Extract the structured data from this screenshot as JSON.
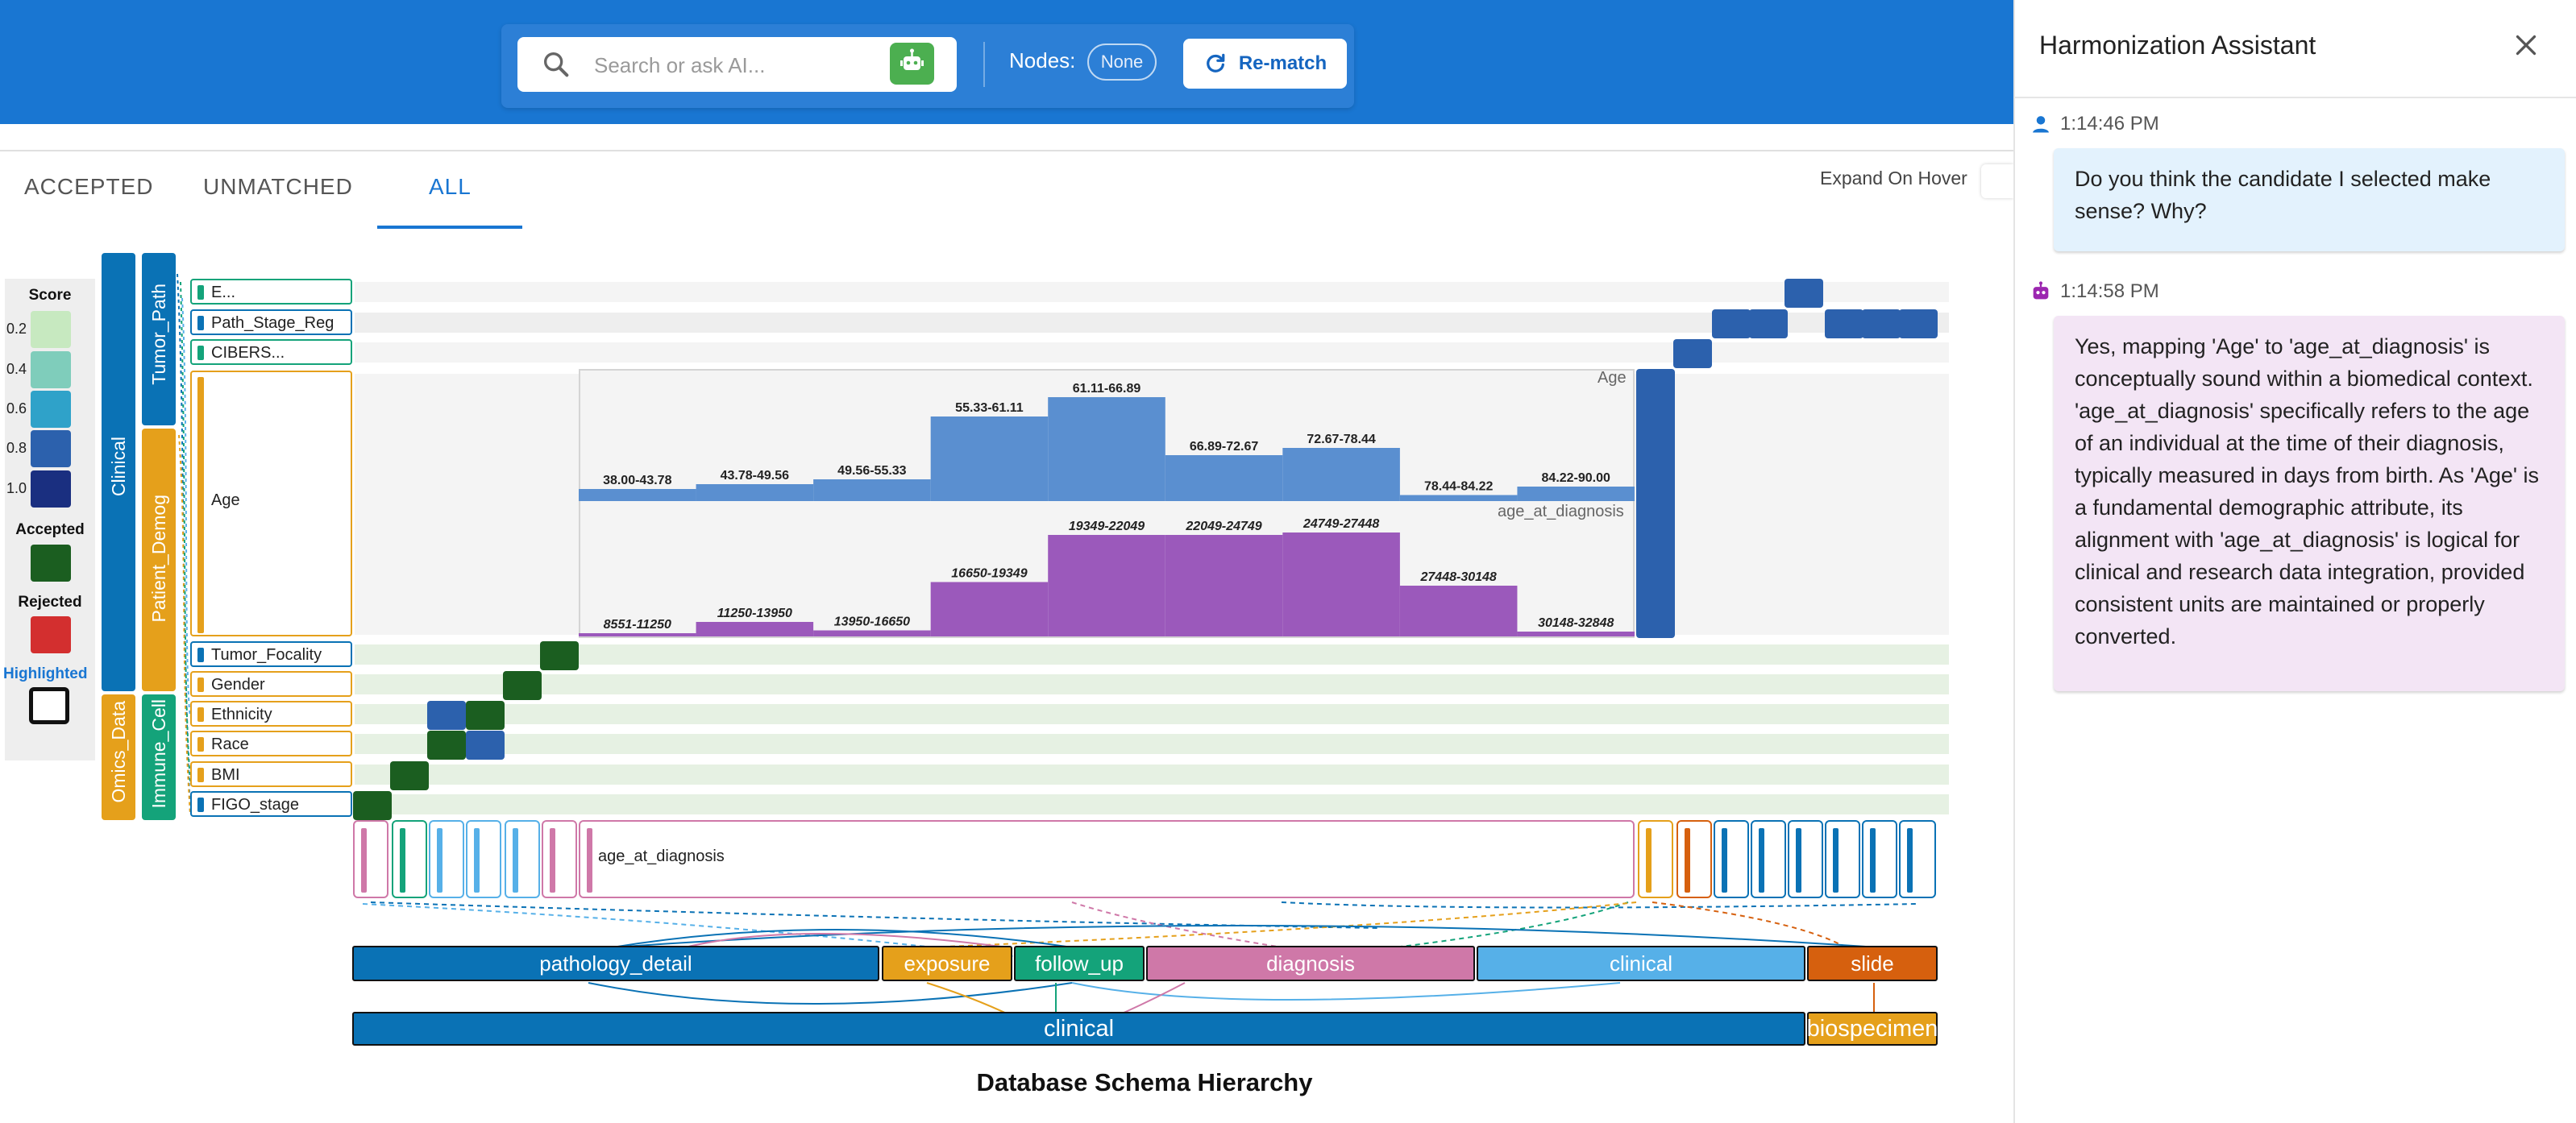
{
  "toolbar": {
    "search_placeholder": "Search or ask AI...",
    "nodes_label": "Nodes:",
    "nodes_value": "None",
    "rematch_label": "Re-match"
  },
  "tabs": [
    {
      "label": "ACCEPTED",
      "selected": false
    },
    {
      "label": "UNMATCHED",
      "selected": false
    },
    {
      "label": "ALL",
      "selected": true
    }
  ],
  "expand_on_hover_label": "Expand On Hover",
  "legend": {
    "score_title": "Score",
    "score_levels": [
      "0.2",
      "0.4",
      "0.6",
      "0.8",
      "1.0"
    ],
    "score_colors": [
      "#c7e9c0",
      "#7fcdbb",
      "#2fa2c9",
      "#2c61ad",
      "#1a2f80"
    ],
    "accepted_label": "Accepted",
    "accepted_color": "#1b5e20",
    "rejected_label": "Rejected",
    "rejected_color": "#d32f2f",
    "highlighted_label": "Highlighted"
  },
  "source_groups": {
    "level1": [
      {
        "label": "Clinical",
        "color": "#0a72b5"
      },
      {
        "label": "Omics_Data",
        "color": "#e5a01b"
      }
    ],
    "level2": [
      {
        "label": "Tumor_Path",
        "color": "#0a72b5"
      },
      {
        "label": "Patient_Demog",
        "color": "#e5a01b"
      },
      {
        "label": "Immune_Cell",
        "color": "#14a37a"
      }
    ]
  },
  "source_columns": [
    {
      "label": "E...",
      "color": "#14a37a"
    },
    {
      "label": "Path_Stage_Reg",
      "color": "#0a72b5"
    },
    {
      "label": "CIBERS...",
      "color": "#14a37a"
    },
    {
      "label": "Age",
      "color": "#e5a01b"
    },
    {
      "label": "Tumor_Focality",
      "color": "#0a72b5"
    },
    {
      "label": "Gender",
      "color": "#e5a01b"
    },
    {
      "label": "Ethnicity",
      "color": "#e5a01b"
    },
    {
      "label": "Race",
      "color": "#e5a01b"
    },
    {
      "label": "BMI",
      "color": "#e5a01b"
    },
    {
      "label": "FIGO_stage",
      "color": "#0a72b5"
    }
  ],
  "expanded_target_label": "age_at_diagnosis",
  "histogram": {
    "source_name": "Age",
    "target_name": "age_at_diagnosis",
    "source_bins": [
      {
        "label": "38.00-43.78",
        "value": 0.1
      },
      {
        "label": "43.78-49.56",
        "value": 0.14
      },
      {
        "label": "49.56-55.33",
        "value": 0.18
      },
      {
        "label": "55.33-61.11",
        "value": 0.7
      },
      {
        "label": "61.11-66.89",
        "value": 0.86
      },
      {
        "label": "66.89-72.67",
        "value": 0.38
      },
      {
        "label": "72.67-78.44",
        "value": 0.44
      },
      {
        "label": "78.44-84.22",
        "value": 0.05
      },
      {
        "label": "84.22-90.00",
        "value": 0.12
      }
    ],
    "target_bins": [
      {
        "label": "8551-11250",
        "value": 0.02
      },
      {
        "label": "11250-13950",
        "value": 0.12
      },
      {
        "label": "13950-16650",
        "value": 0.05
      },
      {
        "label": "16650-19349",
        "value": 0.45
      },
      {
        "label": "19349-22049",
        "value": 0.84
      },
      {
        "label": "22049-24749",
        "value": 0.84
      },
      {
        "label": "24749-27448",
        "value": 0.86
      },
      {
        "label": "27448-30148",
        "value": 0.42
      },
      {
        "label": "30148-32848",
        "value": 0.04
      }
    ]
  },
  "categories": [
    {
      "label": "pathology_detail",
      "color": "#0a72b5"
    },
    {
      "label": "exposure",
      "color": "#e5a01b"
    },
    {
      "label": "follow_up",
      "color": "#14a37a"
    },
    {
      "label": "diagnosis",
      "color": "#cf78a8"
    },
    {
      "label": "clinical",
      "color": "#56b0e8"
    },
    {
      "label": "slide",
      "color": "#d6600e"
    }
  ],
  "roots": [
    {
      "label": "clinical",
      "color": "#0a72b5"
    },
    {
      "label": "biospecimen",
      "color": "#e5a01b"
    }
  ],
  "schema_title": "Database Schema Hierarchy",
  "assistant": {
    "title": "Harmonization Assistant",
    "messages": [
      {
        "role": "user",
        "time": "1:14:46 PM",
        "text": "Do you think the candidate I selected make sense? Why?"
      },
      {
        "role": "assistant",
        "time": "1:14:58 PM",
        "text": "Yes, mapping 'Age' to 'age_at_diagnosis' is conceptually sound within a biomedical context. 'age_at_diagnosis' specifically refers to the age of an individual at the time of their diagnosis, typically measured in days from birth. As 'Age' is a fundamental demographic attribute, its alignment with 'age_at_diagnosis' is logical for clinical and research data integration, provided consistent units are maintained or properly converted."
      }
    ]
  }
}
